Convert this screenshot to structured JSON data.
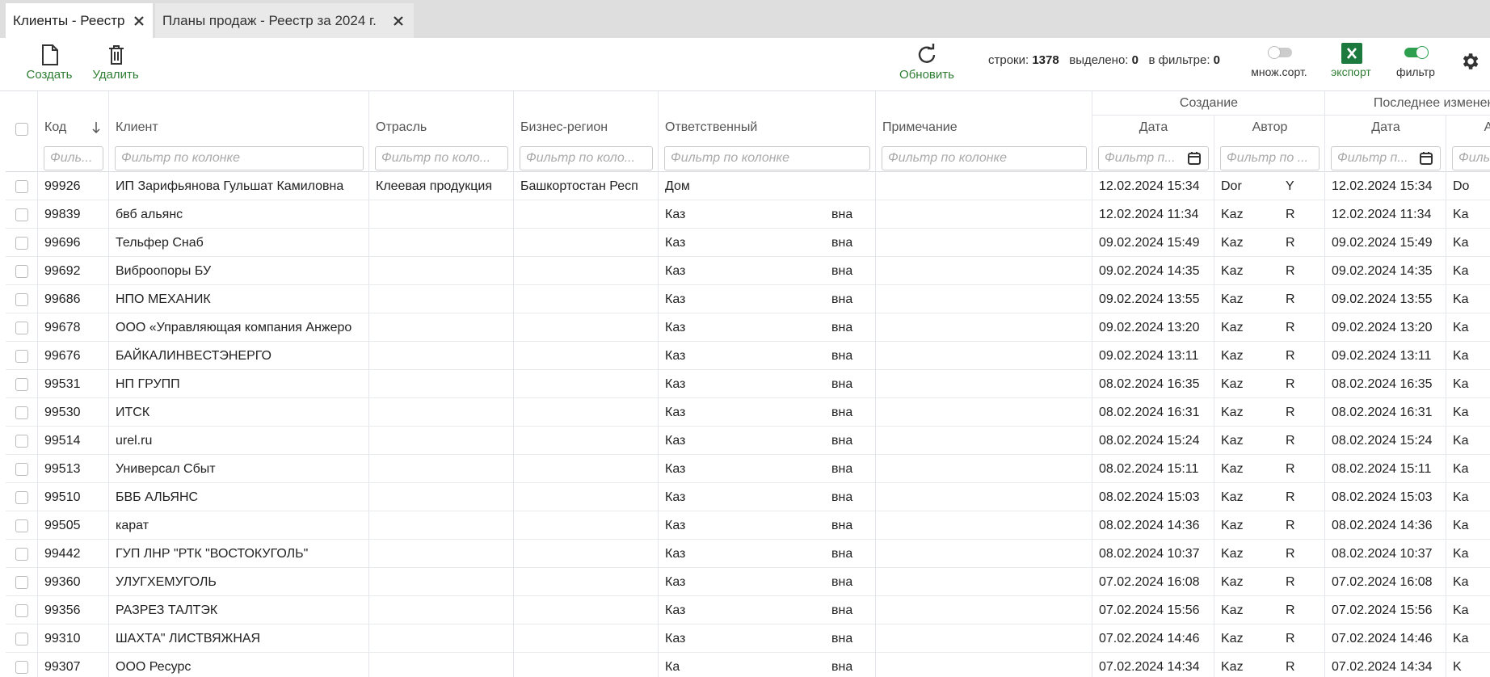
{
  "tabs": [
    {
      "label": "Клиенты - Реестр"
    },
    {
      "label": "Планы продаж - Реестр за 2024 г."
    }
  ],
  "toolbar": {
    "create": "Создать",
    "delete": "Удалить",
    "refresh": "Обновить",
    "rows_label": "строки:",
    "rows": "1378",
    "selected_label": "выделено:",
    "selected": "0",
    "filtered_label": "в фильтре:",
    "filtered": "0",
    "multisort": "множ.сорт.",
    "export": "экспорт",
    "filter": "фильтр"
  },
  "table": {
    "groups": [
      {
        "label": "Создание"
      },
      {
        "label": "Последнее изменение"
      }
    ],
    "columns": [
      {
        "key": "code",
        "label": "Код",
        "filter": "Филь..."
      },
      {
        "key": "client",
        "label": "Клиент",
        "filter": "Фильтр по колонке"
      },
      {
        "key": "industry",
        "label": "Отрасль",
        "filter": "Фильтр по коло..."
      },
      {
        "key": "region",
        "label": "Бизнес-регион",
        "filter": "Фильтр по коло..."
      },
      {
        "key": "resp",
        "label": "Ответственный",
        "filter": "Фильтр по колонке"
      },
      {
        "key": "note",
        "label": "Примечание",
        "filter": "Фильтр по колонке"
      },
      {
        "key": "created",
        "label": "Дата",
        "filter": "Фильтр п..."
      },
      {
        "key": "author",
        "label": "Автор",
        "filter": "Фильтр по ..."
      },
      {
        "key": "modified",
        "label": "Дата",
        "filter": "Фильтр п..."
      },
      {
        "key": "modified_author",
        "label": "Автор",
        "filter": "Фильтр по ..."
      }
    ],
    "rows": [
      {
        "code": "99926",
        "client": "ИП Зарифьянова Гульшат Камиловна",
        "industry": "Клеевая продукция",
        "region": "Башкортостан Респ",
        "resp": "Дом",
        "created": "12.02.2024 15:34",
        "author": "Dor",
        "author_tail": "Y",
        "modified": "12.02.2024 15:34",
        "modified_author": "Do"
      },
      {
        "code": "99839",
        "client": "бвб альянс",
        "resp": "Каз",
        "resp_tail": "вна",
        "created": "12.02.2024 11:34",
        "author": "Kaz",
        "author_tail": "R",
        "modified": "12.02.2024 11:34",
        "modified_author": "Ka"
      },
      {
        "code": "99696",
        "client": "Тельфер Снаб",
        "resp": "Каз",
        "resp_tail": "вна",
        "created": "09.02.2024 15:49",
        "author": "Kaz",
        "author_tail": "R",
        "modified": "09.02.2024 15:49",
        "modified_author": "Ka"
      },
      {
        "code": "99692",
        "client": "Виброопоры БУ",
        "resp": "Каз",
        "resp_tail": "вна",
        "created": "09.02.2024 14:35",
        "author": "Kaz",
        "author_tail": "R",
        "modified": "09.02.2024 14:35",
        "modified_author": "Ka"
      },
      {
        "code": "99686",
        "client": "НПО МЕХАНИК",
        "resp": "Каз",
        "resp_tail": "вна",
        "created": "09.02.2024 13:55",
        "author": "Kaz",
        "author_tail": "R",
        "modified": "09.02.2024 13:55",
        "modified_author": "Ka"
      },
      {
        "code": "99678",
        "client": "ООО «Управляющая компания Анжеро",
        "resp": "Каз",
        "resp_tail": "вна",
        "created": "09.02.2024 13:20",
        "author": "Kaz",
        "author_tail": "R",
        "modified": "09.02.2024 13:20",
        "modified_author": "Ka"
      },
      {
        "code": "99676",
        "client": "БАЙКАЛИНВЕСТЭНЕРГО",
        "resp": "Каз",
        "resp_tail": "вна",
        "created": "09.02.2024 13:11",
        "author": "Kaz",
        "author_tail": "R",
        "modified": "09.02.2024 13:11",
        "modified_author": "Ka"
      },
      {
        "code": "99531",
        "client": "НП ГРУПП",
        "resp": "Каз",
        "resp_tail": "вна",
        "created": "08.02.2024 16:35",
        "author": "Kaz",
        "author_tail": "R",
        "modified": "08.02.2024 16:35",
        "modified_author": "Ka"
      },
      {
        "code": "99530",
        "client": "ИТСК",
        "resp": "Каз",
        "resp_tail": "вна",
        "created": "08.02.2024 16:31",
        "author": "Kaz",
        "author_tail": "R",
        "modified": "08.02.2024 16:31",
        "modified_author": "Ka"
      },
      {
        "code": "99514",
        "client": "urel.ru",
        "resp": "Каз",
        "resp_tail": "вна",
        "created": "08.02.2024 15:24",
        "author": "Kaz",
        "author_tail": "R",
        "modified": "08.02.2024 15:24",
        "modified_author": "Ka"
      },
      {
        "code": "99513",
        "client": "Универсал Сбыт",
        "resp": "Каз",
        "resp_tail": "вна",
        "created": "08.02.2024 15:11",
        "author": "Kaz",
        "author_tail": "R",
        "modified": "08.02.2024 15:11",
        "modified_author": "Ka"
      },
      {
        "code": "99510",
        "client": "БВБ АЛЬЯНС",
        "resp": "Каз",
        "resp_tail": "вна",
        "created": "08.02.2024 15:03",
        "author": "Kaz",
        "author_tail": "R",
        "modified": "08.02.2024 15:03",
        "modified_author": "Ka"
      },
      {
        "code": "99505",
        "client": "карат",
        "resp": "Каз",
        "resp_tail": "вна",
        "created": "08.02.2024 14:36",
        "author": "Kaz",
        "author_tail": "R",
        "modified": "08.02.2024 14:36",
        "modified_author": "Ka"
      },
      {
        "code": "99442",
        "client": "ГУП ЛНР \"РТК \"ВОСТОКУГОЛЬ\"",
        "resp": "Каз",
        "resp_tail": "вна",
        "created": "08.02.2024 10:37",
        "author": "Kaz",
        "author_tail": "R",
        "modified": "08.02.2024 10:37",
        "modified_author": "Ka"
      },
      {
        "code": "99360",
        "client": "УЛУГХЕМУГОЛЬ",
        "resp": "Каз",
        "resp_tail": "вна",
        "created": "07.02.2024 16:08",
        "author": "Kaz",
        "author_tail": "R",
        "modified": "07.02.2024 16:08",
        "modified_author": "Ka"
      },
      {
        "code": "99356",
        "client": "РАЗРЕЗ ТАЛТЭК",
        "resp": "Каз",
        "resp_tail": "вна",
        "created": "07.02.2024 15:56",
        "author": "Kaz",
        "author_tail": "R",
        "modified": "07.02.2024 15:56",
        "modified_author": "Ka"
      },
      {
        "code": "99310",
        "client": "ШАХТА\" ЛИСТВЯЖНАЯ",
        "resp": "Каз",
        "resp_tail": "вна",
        "created": "07.02.2024 14:46",
        "author": "Kaz",
        "author_tail": "R",
        "modified": "07.02.2024 14:46",
        "modified_author": "Ka"
      },
      {
        "code": "99307",
        "client": "ООО Ресурс",
        "resp": "Ка",
        "resp_tail": "вна",
        "created": "07.02.2024 14:34",
        "author": "Kaz",
        "author_tail": "R",
        "modified": "07.02.2024 14:34",
        "modified_author": "K"
      }
    ]
  }
}
